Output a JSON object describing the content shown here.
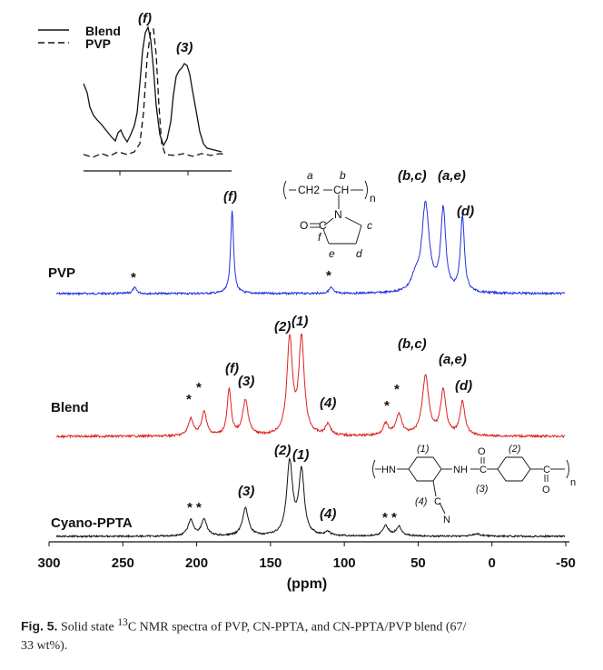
{
  "chart_data": {
    "type": "line",
    "xlabel": "(ppm)",
    "xlim": [
      300,
      -50
    ],
    "x_ticks": [
      "300",
      "250",
      "200",
      "150",
      "100",
      "50",
      "0",
      "-50"
    ],
    "x_tick_values": [
      300,
      250,
      200,
      150,
      100,
      50,
      0,
      -50
    ],
    "series": [
      {
        "name": "PVP",
        "color": "#2233dd",
        "baseline": 0.0,
        "peaks": [
          [
            176,
            1.0,
            1.2
          ],
          [
            45,
            1.05,
            3.0
          ],
          [
            33,
            0.98,
            2.0
          ],
          [
            20,
            0.9,
            1.6
          ],
          [
            52,
            0.15,
            3.0
          ],
          [
            242,
            0.07,
            1.6
          ],
          [
            109,
            0.07,
            1.6
          ]
        ],
        "labels": [
          "(f)",
          "(b,c)",
          "(a,e)",
          "(d)",
          "*",
          "*"
        ]
      },
      {
        "name": "Blend",
        "color": "#dd2222",
        "baseline": 0.0,
        "peaks": [
          [
            137,
            1.0,
            2.2
          ],
          [
            129,
            1.0,
            2.2
          ],
          [
            178,
            0.48,
            1.6
          ],
          [
            167,
            0.37,
            2.2
          ],
          [
            204,
            0.18,
            2.0
          ],
          [
            195,
            0.25,
            2.0
          ],
          [
            111,
            0.12,
            2.0
          ],
          [
            72,
            0.12,
            2.2
          ],
          [
            63,
            0.22,
            2.4
          ],
          [
            45,
            0.63,
            2.6
          ],
          [
            33,
            0.46,
            2.2
          ],
          [
            20,
            0.35,
            2.0
          ]
        ],
        "labels": [
          "*",
          "*",
          "(f)",
          "(3)",
          "(2)",
          "(1)",
          "(4)",
          "*",
          "*",
          "(b,c)",
          "(a,e)",
          "(d)"
        ]
      },
      {
        "name": "Cyano-PPTA",
        "color": "#111111",
        "baseline": 0.0,
        "peaks": [
          [
            137,
            1.0,
            2.4
          ],
          [
            129,
            0.88,
            2.2
          ],
          [
            167,
            0.38,
            2.4
          ],
          [
            204,
            0.22,
            2.2
          ],
          [
            195,
            0.23,
            2.2
          ],
          [
            111,
            0.05,
            2.0
          ],
          [
            72,
            0.14,
            2.4
          ],
          [
            63,
            0.13,
            2.4
          ],
          [
            10,
            0.03,
            4.0
          ]
        ],
        "labels": [
          "* *",
          "(3)",
          "(2)",
          "(1)",
          "(4)",
          "* *"
        ]
      }
    ],
    "inset": {
      "legend": [
        "Blend",
        "PVP"
      ],
      "labels": [
        "(f)",
        "(3)"
      ]
    },
    "pvp_structure": {
      "atoms": [
        "CH2",
        "CH",
        "N",
        "O",
        "C"
      ],
      "labels": [
        "a",
        "b",
        "c",
        "d",
        "e",
        "f",
        "n"
      ]
    },
    "ppta_structure": {
      "atoms": [
        "HN",
        "NH",
        "C",
        "O",
        "C",
        "O",
        "C",
        "N"
      ],
      "labels": [
        "(1)",
        "(2)",
        "(3)",
        "(4)",
        "n"
      ]
    }
  },
  "caption": {
    "label": "Fig. 5.",
    "text_before_sup": " Solid state ",
    "sup": "13",
    "text_after_sup": "C NMR spectra of PVP, CN-PPTA, and CN-PPTA/PVP blend (67/",
    "line2": "33 wt%)."
  }
}
